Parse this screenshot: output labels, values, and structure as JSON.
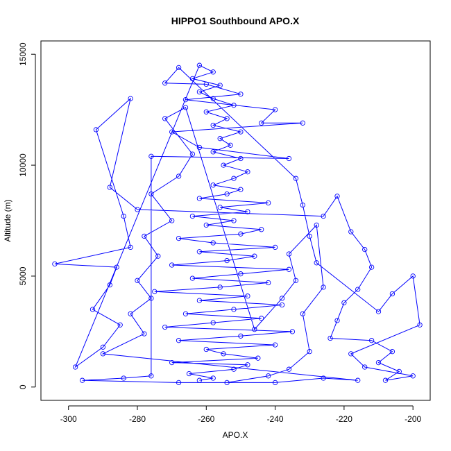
{
  "chart_data": {
    "type": "scatter",
    "title": "HIPPO1 Southbound APO.X",
    "xlabel": "APO.X",
    "ylabel": "Altitude (m)",
    "xlim": [
      -308,
      -195
    ],
    "ylim": [
      -600,
      15600
    ],
    "xticks": [
      "-300",
      "-280",
      "-260",
      "-240",
      "-220",
      "-200"
    ],
    "xtick_values": [
      -300,
      -280,
      -260,
      -240,
      -220,
      -200
    ],
    "yticks": [
      "0",
      "5000",
      "10000",
      "15000"
    ],
    "ytick_values": [
      0,
      5000,
      10000,
      15000
    ],
    "grid": false,
    "marker": "open-circle",
    "connected": true,
    "color": "#0000ff",
    "series": [
      {
        "points": [
          [
            -262,
            300
          ],
          [
            -258,
            400
          ],
          [
            -265,
            600
          ],
          [
            -252,
            800
          ],
          [
            -248,
            1000
          ],
          [
            -270,
            1100
          ],
          [
            -245,
            1300
          ],
          [
            -255,
            1500
          ],
          [
            -260,
            1700
          ],
          [
            -240,
            1900
          ],
          [
            -268,
            2100
          ],
          [
            -250,
            2300
          ],
          [
            -235,
            2500
          ],
          [
            -272,
            2700
          ],
          [
            -258,
            2900
          ],
          [
            -244,
            3100
          ],
          [
            -266,
            3300
          ],
          [
            -252,
            3500
          ],
          [
            -238,
            3700
          ],
          [
            -262,
            3900
          ],
          [
            -248,
            4100
          ],
          [
            -275,
            4300
          ],
          [
            -256,
            4500
          ],
          [
            -242,
            4700
          ],
          [
            -264,
            4900
          ],
          [
            -250,
            5100
          ],
          [
            -236,
            5300
          ],
          [
            -270,
            5500
          ],
          [
            -254,
            5700
          ],
          [
            -246,
            5900
          ],
          [
            -262,
            6100
          ],
          [
            -240,
            6300
          ],
          [
            -258,
            6500
          ],
          [
            -268,
            6700
          ],
          [
            -250,
            6900
          ],
          [
            -244,
            7100
          ],
          [
            -260,
            7300
          ],
          [
            -252,
            7500
          ],
          [
            -264,
            7700
          ],
          [
            -248,
            7900
          ],
          [
            -256,
            8100
          ],
          [
            -242,
            8300
          ],
          [
            -262,
            8500
          ],
          [
            -254,
            8700
          ],
          [
            -250,
            8900
          ],
          [
            -258,
            9100
          ],
          [
            -252,
            9400
          ],
          [
            -248,
            9700
          ],
          [
            -255,
            10000
          ],
          [
            -250,
            10300
          ],
          [
            -258,
            10600
          ],
          [
            -253,
            10900
          ],
          [
            -256,
            11200
          ],
          [
            -250,
            11500
          ],
          [
            -258,
            11800
          ],
          [
            -254,
            12100
          ],
          [
            -260,
            12400
          ],
          [
            -252,
            12700
          ],
          [
            -258,
            13000
          ],
          [
            -262,
            13300
          ],
          [
            -256,
            13600
          ],
          [
            -264,
            13900
          ],
          [
            -258,
            14200
          ],
          [
            -262,
            14500
          ],
          [
            -298,
            900
          ],
          [
            -290,
            1800
          ],
          [
            -285,
            2800
          ],
          [
            -293,
            3500
          ],
          [
            -288,
            4600
          ],
          [
            -286,
            5400
          ],
          [
            -304,
            5550
          ],
          [
            -282,
            6300
          ],
          [
            -284,
            7700
          ],
          [
            -292,
            11600
          ],
          [
            -282,
            13000
          ],
          [
            -288,
            9000
          ],
          [
            -280,
            8000
          ],
          [
            -226,
            7700
          ],
          [
            -222,
            8600
          ],
          [
            -218,
            7000
          ],
          [
            -214,
            6200
          ],
          [
            -212,
            5400
          ],
          [
            -216,
            4400
          ],
          [
            -220,
            3800
          ],
          [
            -222,
            3000
          ],
          [
            -224,
            2200
          ],
          [
            -212,
            2100
          ],
          [
            -206,
            1600
          ],
          [
            -210,
            1100
          ],
          [
            -204,
            700
          ],
          [
            -208,
            300
          ],
          [
            -200,
            500
          ],
          [
            -214,
            900
          ],
          [
            -218,
            1500
          ],
          [
            -198,
            2800
          ],
          [
            -200,
            5000
          ],
          [
            -206,
            4200
          ],
          [
            -210,
            3400
          ],
          [
            -228,
            5600
          ],
          [
            -230,
            6800
          ],
          [
            -232,
            8200
          ],
          [
            -234,
            9400
          ],
          [
            -268,
            14400
          ],
          [
            -272,
            13700
          ],
          [
            -260,
            13650
          ],
          [
            -250,
            13200
          ],
          [
            -266,
            12950
          ],
          [
            -240,
            12500
          ],
          [
            -244,
            11900
          ],
          [
            -232,
            11900
          ],
          [
            -270,
            11500
          ],
          [
            -262,
            10800
          ],
          [
            -236,
            10300
          ],
          [
            -276,
            10400
          ],
          [
            -276,
            500
          ],
          [
            -284,
            400
          ],
          [
            -296,
            300
          ],
          [
            -268,
            200
          ],
          [
            -240,
            200
          ],
          [
            -226,
            400
          ],
          [
            -216,
            300
          ],
          [
            -290,
            1500
          ],
          [
            -278,
            2400
          ],
          [
            -282,
            3300
          ],
          [
            -276,
            4000
          ],
          [
            -280,
            4800
          ],
          [
            -274,
            5900
          ],
          [
            -278,
            6800
          ],
          [
            -270,
            7500
          ],
          [
            -276,
            8700
          ],
          [
            -268,
            9500
          ],
          [
            -264,
            10500
          ],
          [
            -272,
            12100
          ],
          [
            -266,
            12600
          ],
          [
            -246,
            2600
          ],
          [
            -238,
            4000
          ],
          [
            -234,
            4800
          ],
          [
            -236,
            6000
          ],
          [
            -228,
            7300
          ],
          [
            -226,
            4500
          ],
          [
            -232,
            3300
          ],
          [
            -230,
            1600
          ],
          [
            -236,
            800
          ],
          [
            -242,
            500
          ],
          [
            -254,
            200
          ]
        ]
      }
    ]
  }
}
